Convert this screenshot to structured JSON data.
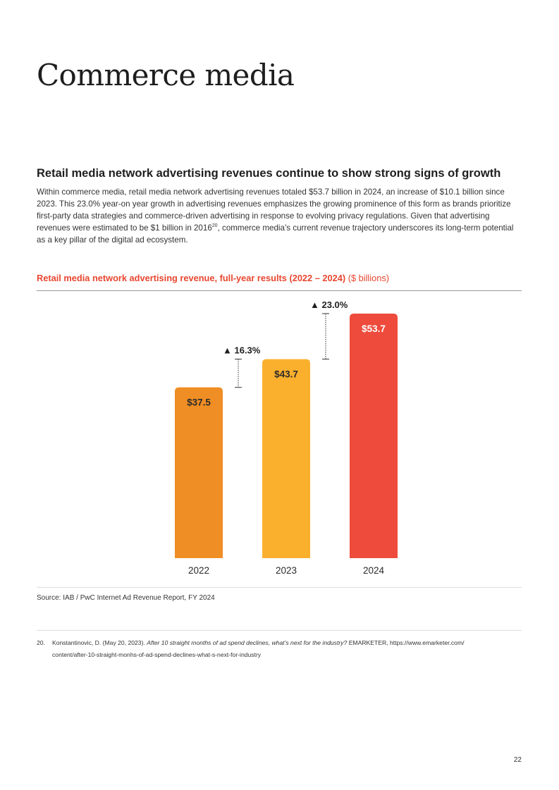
{
  "page": {
    "title": "Commerce media",
    "heading": "Retail media network advertising revenues continue to show strong signs of growth",
    "intro": {
      "before": "Within commerce media, retail media network advertising revenues totaled $53.7 billion in 2024, an increase of $10.1 billion since 2023. This 23.0% year-on year growth in advertising revenues emphasizes the growing prominence of this form as brands prioritize first-party data strategies and commerce-driven advertising in response to evolving privacy regulations. Given that advertising revenues were estimated to be $1 billion in 2016",
      "ref": "20",
      "after": ", commerce media’s current revenue trajectory underscores its long-term potential as a key pillar of the digital ad ecosystem."
    },
    "page_number": "22"
  },
  "chart_title": {
    "main": "Retail media network advertising revenue, full-year results (2022 – 2024)",
    "unit": "($ billions)"
  },
  "chart_data": {
    "type": "bar",
    "title": "Retail media network advertising revenue, full-year results (2022 – 2024) ($ billions)",
    "categories": [
      "2022",
      "2023",
      "2024"
    ],
    "values": [
      37.5,
      43.7,
      53.7
    ],
    "value_labels": [
      "$37.5",
      "$43.7",
      "$53.7"
    ],
    "colors": [
      "#ef8e24",
      "#fbb02d",
      "#ee4b3c"
    ],
    "ylim": [
      0,
      53.7
    ],
    "xlabel": "",
    "ylabel": "",
    "grid": false,
    "annotations": [
      {
        "from": "2022",
        "to": "2023",
        "label": "▲ 16.3%"
      },
      {
        "from": "2023",
        "to": "2024",
        "label": "▲ 23.0%"
      }
    ]
  },
  "source": "Source: IAB / PwC Internet Ad Revenue Report, FY 2024",
  "footnote": {
    "number": "20.",
    "text": "Konstantinovic, D. (May 20, 2023).",
    "italic": "After 10 straight months of ad spend declines, what’s next for the industry?",
    "rest": "EMARKETER, https://www.emarketer.com/",
    "line2": "content/after-10-straight-monhs-of-ad-spend-declines-what-s-next-for-industry"
  },
  "colors": {
    "accent": "#e8462f",
    "rule": "#999999"
  }
}
